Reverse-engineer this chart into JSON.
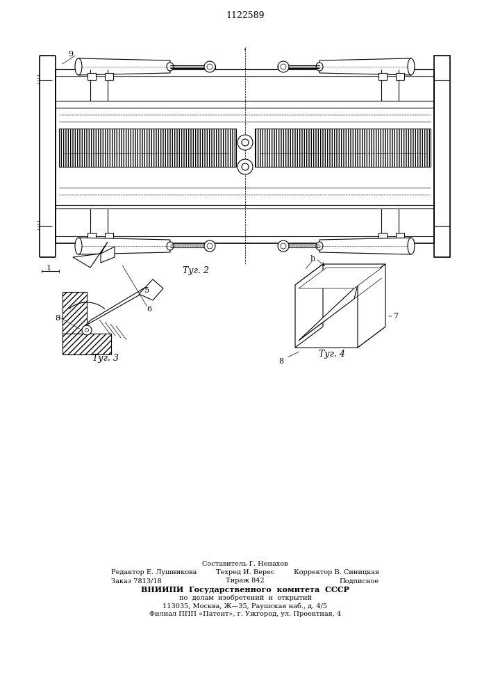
{
  "patent_number": "1122589",
  "background_color": "#ffffff",
  "fig_width": 7.07,
  "fig_height": 10.0,
  "dpi": 100,
  "footer_line0": "Составитель Г. Ненахов",
  "footer_line1_left": "Редактор Е. Лушникова",
  "footer_line1_mid": "Техред И. Верес",
  "footer_line1_right": "Корректор В. Синицкая",
  "footer_line2_left": "Заказ 7813/18",
  "footer_line2_mid": "Тираж 842",
  "footer_line2_right": "Подписное",
  "footer_line3": "ВНИИПИ  Государственного  комитета  СССР",
  "footer_line4": "по  делам  изобретений  и  открытий",
  "footer_line5": "113035, Москва, Ж—35, Раушская наб., д. 4/5",
  "footer_line6": "Филиал ППП «Патент», г. Ужгород, ул. Проектная, 4",
  "fig2_label": "Τуг. 2",
  "fig3_label": "Τуг. 3",
  "fig4_label": "Τуг. 4",
  "label_1": "1",
  "label_9": "9",
  "label_5": "5",
  "label_6": "6",
  "label_8a": "8",
  "label_h": "h",
  "label_7": "7",
  "label_8b": "8"
}
